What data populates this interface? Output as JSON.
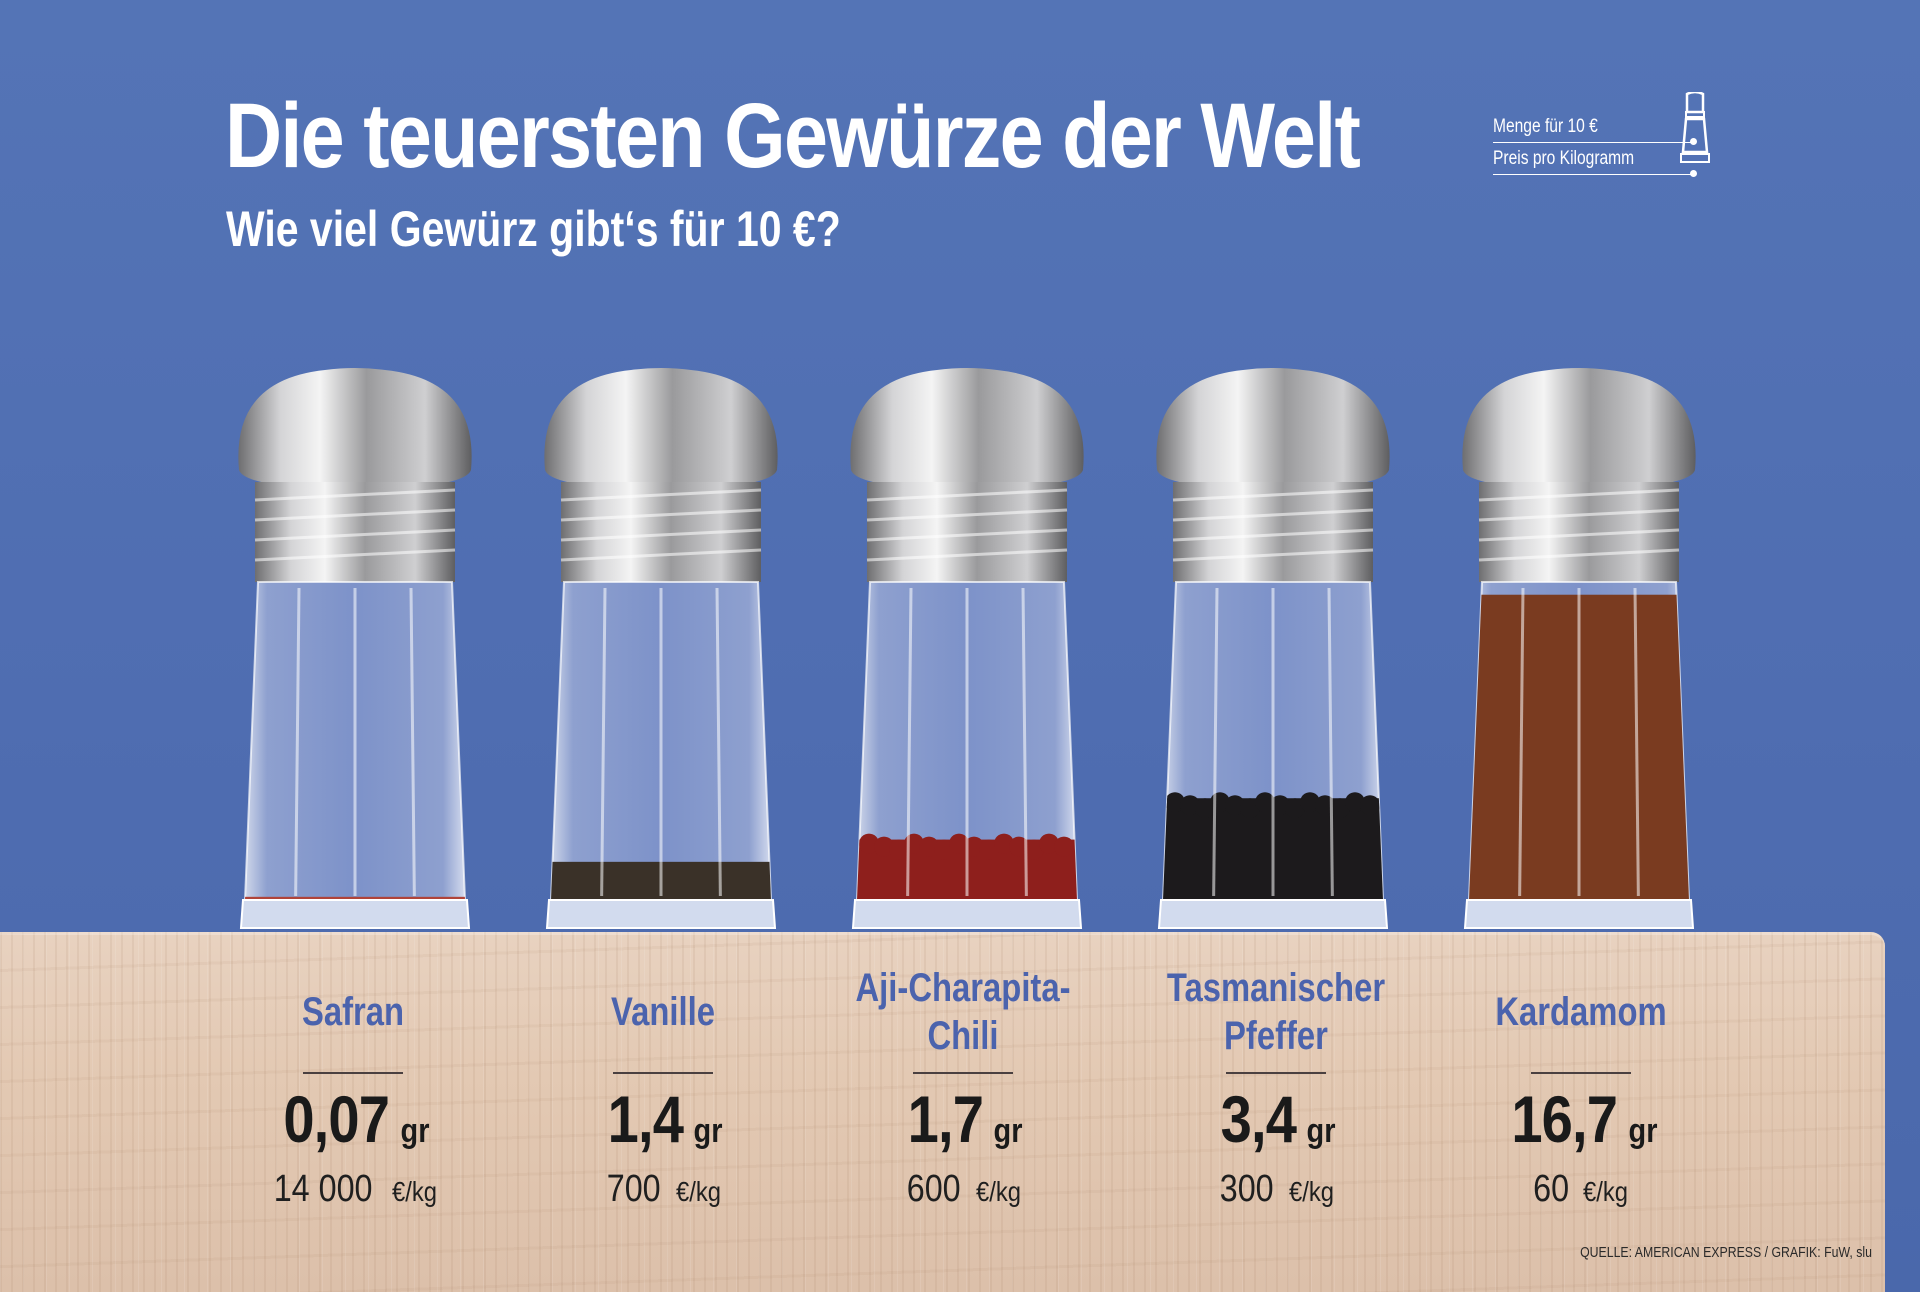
{
  "header": {
    "title": "Die teuersten Gewürze der Welt",
    "subtitle": "Wie viel Gewürz gibt‘s für 10 €?"
  },
  "legend": {
    "amount_label": "Menge für 10 €",
    "price_label": "Preis pro Kilogramm"
  },
  "unit_amount": "gr",
  "unit_price": "€/kg",
  "spices": [
    {
      "name_line1": "Safran",
      "name_line2": "",
      "amount": "0,07",
      "price": "14 000",
      "fill_level": 0.01,
      "fill_color": "#b0443a",
      "fill_style": "threads"
    },
    {
      "name_line1": "Vanille",
      "name_line2": "",
      "amount": "1,4",
      "price": "700",
      "fill_level": 0.12,
      "fill_color": "#3a3128",
      "fill_style": "powder"
    },
    {
      "name_line1": "Aji-Charapita-",
      "name_line2": "Chili",
      "amount": "1,7",
      "price": "600",
      "fill_level": 0.19,
      "fill_color": "#8e1f1c",
      "fill_style": "berries"
    },
    {
      "name_line1": "Tasmanischer",
      "name_line2": "Pfeffer",
      "amount": "3,4",
      "price": "300",
      "fill_level": 0.32,
      "fill_color": "#1c1a1c",
      "fill_style": "berries"
    },
    {
      "name_line1": "Kardamom",
      "name_line2": "",
      "amount": "16,7",
      "price": "60",
      "fill_level": 0.96,
      "fill_color": "#7a3b20",
      "fill_style": "powder"
    }
  ],
  "source": "QUELLE: AMERICAN EXPRESS / GRAFIK: FuW, slu"
}
